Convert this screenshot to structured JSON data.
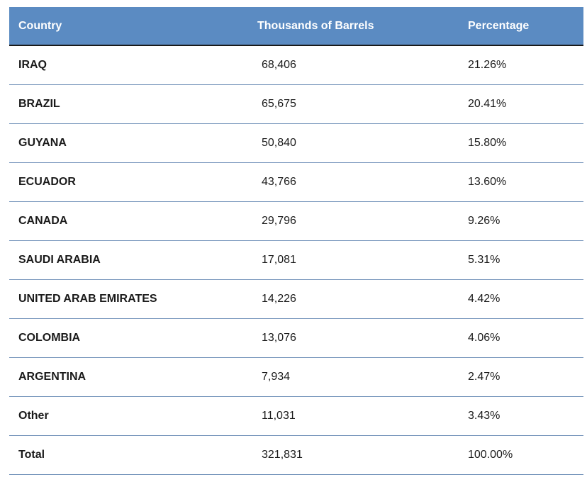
{
  "table": {
    "headers": {
      "country": "Country",
      "barrels": "Thousands of Barrels",
      "percentage": "Percentage"
    },
    "header_color": "#5b8bc2",
    "rows": [
      {
        "country": "IRAQ",
        "barrels": "68,406",
        "percentage": "21.26%"
      },
      {
        "country": "BRAZIL",
        "barrels": "65,675",
        "percentage": "20.41%"
      },
      {
        "country": "GUYANA",
        "barrels": "50,840",
        "percentage": "15.80%"
      },
      {
        "country": "ECUADOR",
        "barrels": "43,766",
        "percentage": "13.60%"
      },
      {
        "country": "CANADA",
        "barrels": "29,796",
        "percentage": "9.26%"
      },
      {
        "country": "SAUDI ARABIA",
        "barrels": "17,081",
        "percentage": "5.31%"
      },
      {
        "country": "UNITED ARAB EMIRATES",
        "barrels": "14,226",
        "percentage": "4.42%"
      },
      {
        "country": "COLOMBIA",
        "barrels": "13,076",
        "percentage": "4.06%"
      },
      {
        "country": "ARGENTINA",
        "barrels": "7,934",
        "percentage": "2.47%"
      },
      {
        "country": "Other",
        "barrels": "11,031",
        "percentage": "3.43%"
      },
      {
        "country": "Total",
        "barrels": "321,831",
        "percentage": "100.00%"
      }
    ]
  }
}
